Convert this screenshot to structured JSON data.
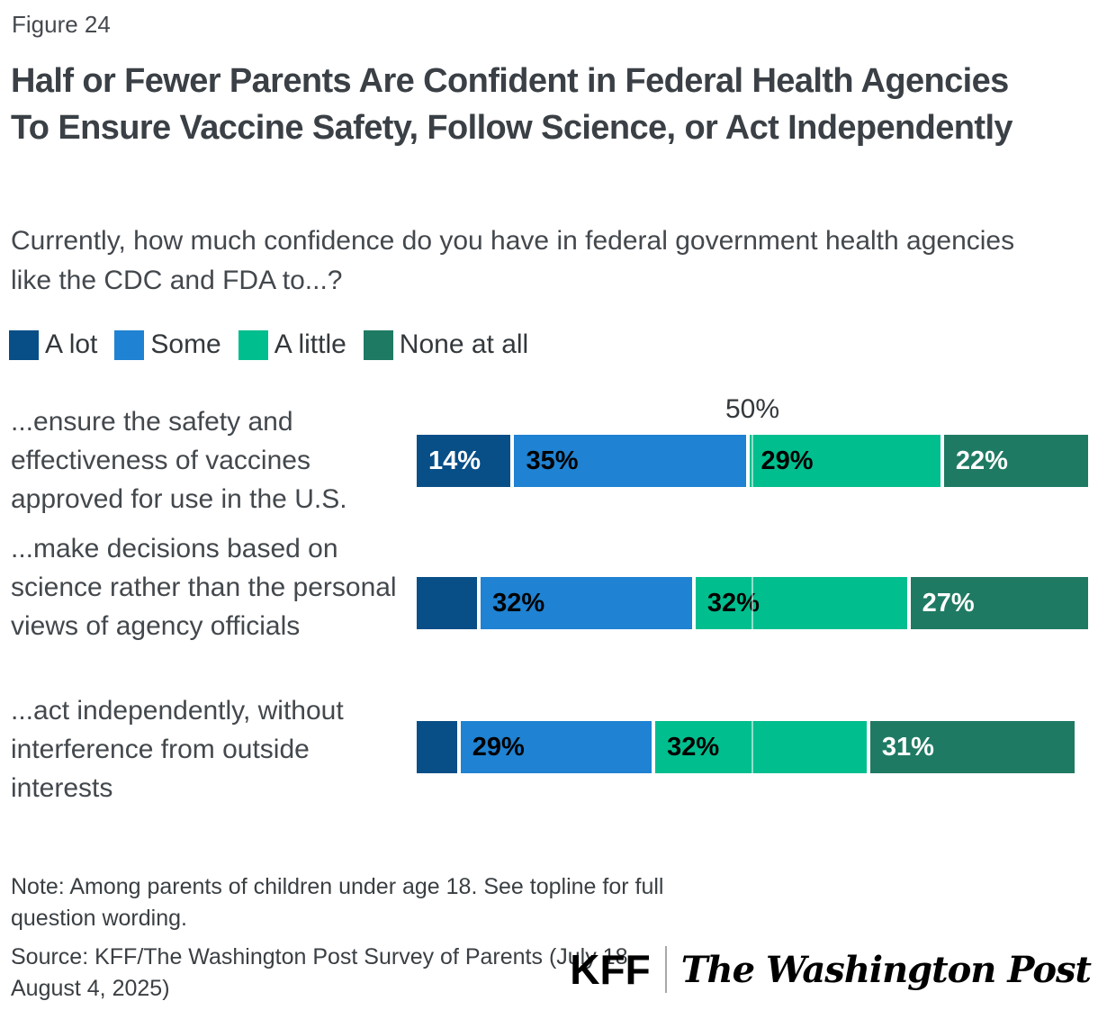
{
  "figure_label": "Figure 24",
  "title": "Half or Fewer Parents Are Confident in Federal Health Agencies To Ensure Vaccine Safety, Follow Science, or Act Independently",
  "subtitle": "Currently, how much confidence do you have in federal government health agencies like the CDC and FDA to...?",
  "legend": [
    {
      "label": "A lot",
      "color": "#084E87"
    },
    {
      "label": "Some",
      "color": "#1F82D2"
    },
    {
      "label": "A little",
      "color": "#00BE8E"
    },
    {
      "label": "None at all",
      "color": "#1F7A63"
    }
  ],
  "axis": {
    "midpoint_label": "50%"
  },
  "chart_data": {
    "type": "bar",
    "orientation": "horizontal",
    "stacked": true,
    "xlim": [
      0,
      100
    ],
    "gridline_at": 50,
    "categories": [
      "...ensure the safety and effectiveness of vaccines approved for use in the U.S.",
      "...make decisions based on science rather than the personal views of agency officials",
      "...act independently, without interference from outside interests"
    ],
    "series": [
      {
        "name": "A lot",
        "color": "#084E87",
        "text_color": "#FFFFFF",
        "values": [
          14,
          9,
          6
        ],
        "labels": [
          "14%",
          "",
          ""
        ]
      },
      {
        "name": "Some",
        "color": "#1F82D2",
        "text_color": "#000000",
        "values": [
          35,
          32,
          29
        ],
        "labels": [
          "35%",
          "32%",
          "29%"
        ]
      },
      {
        "name": "A little",
        "color": "#00BE8E",
        "text_color": "#000000",
        "values": [
          29,
          32,
          32
        ],
        "labels": [
          "29%",
          "32%",
          "32%"
        ]
      },
      {
        "name": "None at all",
        "color": "#1F7A63",
        "text_color": "#FFFFFF",
        "values": [
          22,
          27,
          31
        ],
        "labels": [
          "22%",
          "27%",
          "31%"
        ]
      }
    ]
  },
  "note": "Note: Among parents of children under age 18. See topline for full question wording.",
  "source": "Source: KFF/The Washington Post Survey of Parents (July 18-August 4, 2025)",
  "logos": {
    "kff": "KFF",
    "wapo": "The Washington Post"
  }
}
